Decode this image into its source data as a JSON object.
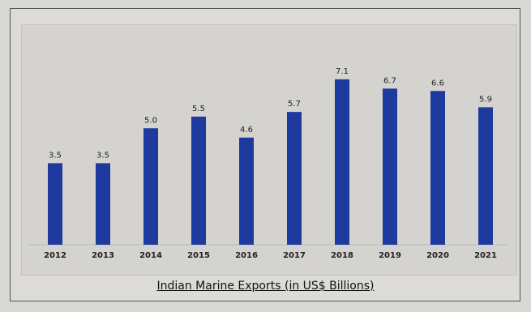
{
  "chart_data": {
    "type": "bar",
    "categories": [
      "2012",
      "2013",
      "2014",
      "2015",
      "2016",
      "2017",
      "2018",
      "2019",
      "2020",
      "2021"
    ],
    "values": [
      3.5,
      3.5,
      5.0,
      5.5,
      4.6,
      5.7,
      7.1,
      6.7,
      6.6,
      5.9
    ],
    "value_labels": [
      "3.5",
      "3.5",
      "5.0",
      "5.5",
      "4.6",
      "5.7",
      "7.1",
      "6.7",
      "6.6",
      "5.9"
    ],
    "title": "Indian Marine Exports (in US$ Billions)",
    "xlabel": "",
    "ylabel": "",
    "ylim": [
      0,
      8
    ],
    "grid": false,
    "legend": "none",
    "bar_color": "#1f3a9e"
  }
}
